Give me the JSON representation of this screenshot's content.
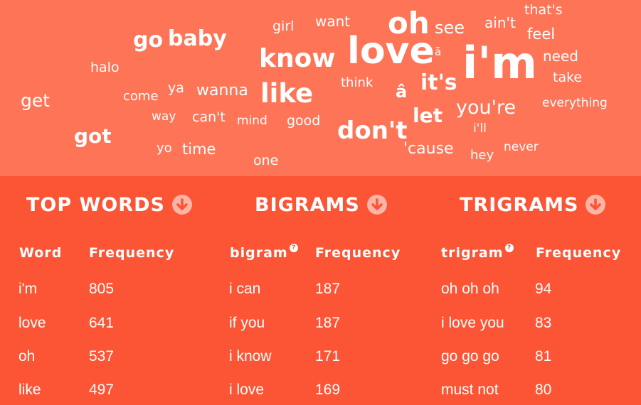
{
  "cloud": {
    "words": [
      "that's",
      "want",
      "girl",
      "oh",
      "see",
      "ain't",
      "feel",
      "go",
      "baby",
      "love",
      "know",
      "i'm",
      "need",
      "halo",
      "ã",
      "take",
      "think",
      "get",
      "come",
      "ya",
      "wanna",
      "like",
      "â",
      "it's",
      "you're",
      "everything",
      "way",
      "can't",
      "mind",
      "good",
      "let",
      "got",
      "don't",
      "i'll",
      "yo",
      "time",
      "'cause",
      "never",
      "hey",
      "one"
    ]
  },
  "sections": [
    {
      "title": "TOP WORDS",
      "col1": "Word",
      "col2": "Frequency",
      "help": false,
      "rows": [
        [
          "i'm",
          "805"
        ],
        [
          "love",
          "641"
        ],
        [
          "oh",
          "537"
        ],
        [
          "like",
          "497"
        ]
      ]
    },
    {
      "title": "BIGRAMS",
      "col1": "bigram",
      "col2": "Frequency",
      "help": true,
      "rows": [
        [
          "i can",
          "187"
        ],
        [
          "if you",
          "187"
        ],
        [
          "i know",
          "171"
        ],
        [
          "i love",
          "169"
        ]
      ]
    },
    {
      "title": "TRIGRAMS",
      "col1": "trigram",
      "col2": "Frequency",
      "help": true,
      "rows": [
        [
          "oh oh oh",
          "94"
        ],
        [
          "i love you",
          "83"
        ],
        [
          "go go go",
          "81"
        ],
        [
          "must not",
          "80"
        ]
      ]
    }
  ],
  "help_glyph": "?",
  "icons": {
    "download": "download-circle-icon"
  },
  "colors": {
    "cloud_bg": "#fe7457",
    "panel_bg": "#fb5535",
    "icon_bg": "#fcb4a4",
    "text": "#ffffff"
  }
}
